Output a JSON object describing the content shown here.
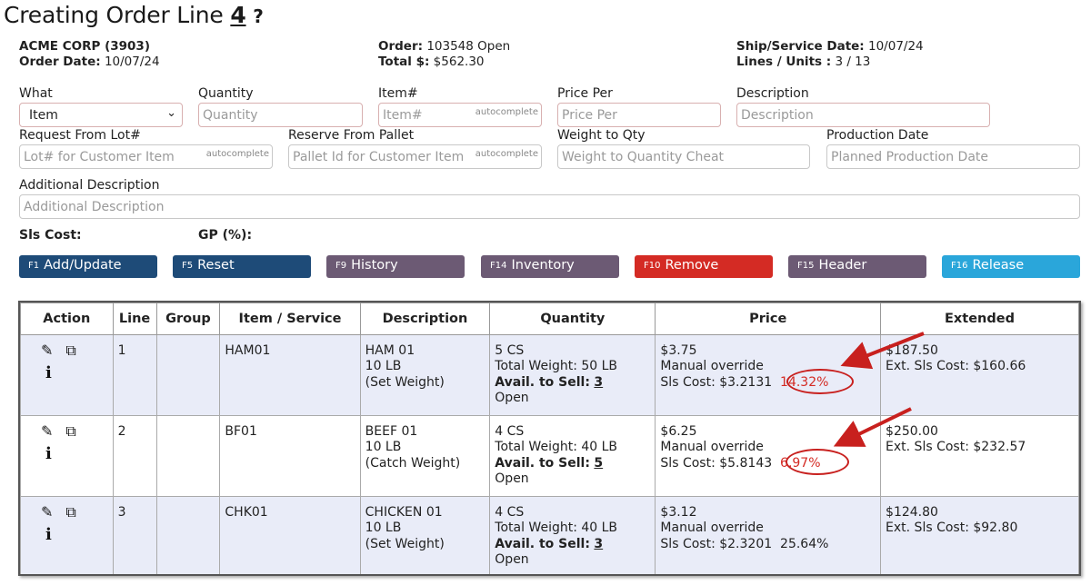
{
  "page": {
    "title_prefix": "Creating Order Line",
    "title_number": "4",
    "help_glyph": "?"
  },
  "header": {
    "customer": "ACME CORP (3903)",
    "order_date_label": "Order Date:",
    "order_date": "10/07/24",
    "order_label": "Order:",
    "order_value": "103548 Open",
    "total_label": "Total $:",
    "total_value": "$562.30",
    "ship_label": "Ship/Service Date:",
    "ship_value": "10/07/24",
    "lines_label": "Lines / Units :",
    "lines_value": "3 / 13"
  },
  "form": {
    "what_label": "What",
    "what_value": "Item",
    "quantity_label": "Quantity",
    "quantity_placeholder": "Quantity",
    "item_label": "Item#",
    "item_placeholder": "Item#",
    "autocomplete_tag": "autocomplete",
    "price_label": "Price Per",
    "price_placeholder": "Price Per",
    "desc_label": "Description",
    "desc_placeholder": "Description",
    "lot_label": "Request From Lot#",
    "lot_placeholder": "Lot# for Customer Item",
    "pallet_label": "Reserve From Pallet",
    "pallet_placeholder": "Pallet Id for Customer Item",
    "weight_label": "Weight to Qty",
    "weight_placeholder": "Weight to Quantity Cheat",
    "prod_label": "Production Date",
    "prod_placeholder": "Planned Production Date",
    "adddesc_label": "Additional Description",
    "adddesc_placeholder": "Additional Description",
    "sls_cost_label": "Sls Cost:",
    "gp_label": "GP (%):"
  },
  "buttons": [
    {
      "key": "F1",
      "label": "Add/Update"
    },
    {
      "key": "F5",
      "label": "Reset"
    },
    {
      "key": "F9",
      "label": "History"
    },
    {
      "key": "F14",
      "label": "Inventory"
    },
    {
      "key": "F10",
      "label": "Remove"
    },
    {
      "key": "F15",
      "label": "Header"
    },
    {
      "key": "F16",
      "label": "Release"
    }
  ],
  "table": {
    "headers": [
      "Action",
      "Line",
      "Group",
      "Item / Service",
      "Description",
      "Quantity",
      "Price",
      "Extended"
    ],
    "rows": [
      {
        "line": "1",
        "group": "",
        "item": "HAM01",
        "desc1": "HAM 01",
        "desc2": "10 LB",
        "desc3": "(Set Weight)",
        "qty1": "5 CS",
        "qty2": "Total Weight: 50 LB",
        "avail_label": "Avail. to Sell:",
        "avail_value": "3",
        "qty4": "Open",
        "price1": "$3.75",
        "price2": "Manual override",
        "sls_cost": "Sls Cost: $3.2131",
        "gp": "14.32%",
        "ext1": "$187.50",
        "ext2": "Ext. Sls Cost: $160.66"
      },
      {
        "line": "2",
        "group": "",
        "item": "BF01",
        "desc1": "BEEF 01",
        "desc2": "10 LB",
        "desc3": "(Catch Weight)",
        "qty1": "4 CS",
        "qty2": "Total Weight: 40 LB",
        "avail_label": "Avail. to Sell:",
        "avail_value": "5",
        "qty4": "Open",
        "price1": "$6.25",
        "price2": "Manual override",
        "sls_cost": "Sls Cost: $5.8143",
        "gp": "6.97%",
        "ext1": "$250.00",
        "ext2": "Ext. Sls Cost: $232.57"
      },
      {
        "line": "3",
        "group": "",
        "item": "CHK01",
        "desc1": "CHICKEN 01",
        "desc2": "10 LB",
        "desc3": "(Set Weight)",
        "qty1": "4 CS",
        "qty2": "Total Weight: 40 LB",
        "avail_label": "Avail. to Sell:",
        "avail_value": "3",
        "qty4": "Open",
        "price1": "$3.12",
        "price2": "Manual override",
        "sls_cost": "Sls Cost: $2.3201",
        "gp": "25.64%",
        "ext1": "$124.80",
        "ext2": "Ext. Sls Cost: $92.80"
      }
    ]
  },
  "colors": {
    "btn_blue": "#1e4b78",
    "btn_purple": "#6c5a74",
    "btn_red": "#d42b24",
    "btn_light": "#2aa6da",
    "annotation_red": "#c8201e"
  },
  "icons": [
    "pencil-icon",
    "copy-icon",
    "info-icon",
    "chevron-down-icon",
    "help-icon"
  ]
}
